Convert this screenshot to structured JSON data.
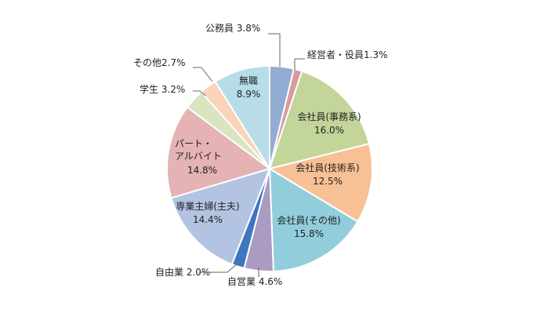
{
  "chart_data": {
    "type": "pie",
    "title": "",
    "start_angle_deg": 0,
    "direction": "clockwise",
    "slices": [
      {
        "label": "公務員",
        "value": 3.8,
        "color": "#93acd3",
        "label_text": "公務員 3.8%",
        "placement": "outside"
      },
      {
        "label": "経営者・役員",
        "value": 1.3,
        "color": "#d99a9b",
        "label_text": "経営者・役員1.3%",
        "placement": "outside"
      },
      {
        "label": "会社員(事務系)",
        "value": 16.0,
        "color": "#c4d59a",
        "label_text": "会社員(事務系)",
        "label_value": "16.0%",
        "placement": "inside"
      },
      {
        "label": "会社員(技術系)",
        "value": 12.5,
        "color": "#f7c095",
        "label_text": "会社員(技術系)",
        "label_value": "12.5%",
        "placement": "inside"
      },
      {
        "label": "会社員(その他)",
        "value": 15.8,
        "color": "#92cddc",
        "label_text": "会社員(その他)",
        "label_value": "15.8%",
        "placement": "inside"
      },
      {
        "label": "自営業",
        "value": 4.6,
        "color": "#a99bc1",
        "label_text": "自営業 4.6%",
        "placement": "outside"
      },
      {
        "label": "自由業",
        "value": 2.0,
        "color": "#3e77c0",
        "label_text": "自由業 2.0%",
        "placement": "outside"
      },
      {
        "label": "専業主婦(主夫)",
        "value": 14.4,
        "color": "#b3c4e2",
        "label_text": "専業主婦(主夫)",
        "label_value": "14.4%",
        "placement": "inside"
      },
      {
        "label": "パート・アルバイト",
        "value": 14.8,
        "color": "#e5b3b3",
        "label_lines": [
          "パート・",
          "アルバイト"
        ],
        "label_value": "14.8%",
        "placement": "inside"
      },
      {
        "label": "学生",
        "value": 3.2,
        "color": "#d8e5be",
        "label_text": "学生 3.2%",
        "placement": "outside"
      },
      {
        "label": "その他",
        "value": 2.7,
        "color": "#fad4b8",
        "label_text": "その他2.7%",
        "placement": "outside"
      },
      {
        "label": "無職",
        "value": 8.9,
        "color": "#b7dde8",
        "label_text": "無職",
        "label_value": "8.9%",
        "placement": "inside"
      }
    ]
  }
}
